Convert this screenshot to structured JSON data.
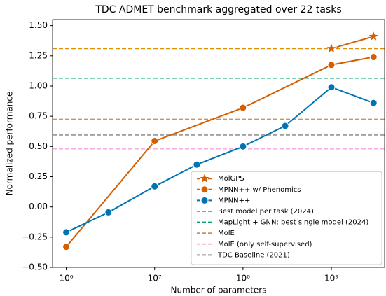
{
  "chart_data": {
    "type": "line",
    "title": "TDC ADMET benchmark aggregated over 22 tasks",
    "x_label": "Number of parameters",
    "y_label": "Normalized performance",
    "x_scale": "log",
    "xlim": [
      700000,
      4000000000
    ],
    "ylim": [
      -0.5,
      1.55
    ],
    "xticks": [
      {
        "value": 1000000,
        "label": "10⁶"
      },
      {
        "value": 10000000,
        "label": "10⁷"
      },
      {
        "value": 100000000,
        "label": "10⁸"
      },
      {
        "value": 1000000000,
        "label": "10⁹"
      }
    ],
    "yticks": [
      {
        "value": -0.5,
        "label": "−0.50"
      },
      {
        "value": -0.25,
        "label": "−0.25"
      },
      {
        "value": 0,
        "label": "0.00"
      },
      {
        "value": 0.25,
        "label": "0.25"
      },
      {
        "value": 0.5,
        "label": "0.50"
      },
      {
        "value": 0.75,
        "label": "0.75"
      },
      {
        "value": 1,
        "label": "1.00"
      },
      {
        "value": 1.25,
        "label": "1.25"
      },
      {
        "value": 1.5,
        "label": "1.50"
      }
    ],
    "legend_position": "lower right",
    "series": [
      {
        "name": "MolGPS",
        "color": "#d55e00",
        "marker": "star",
        "x": [
          1000000000,
          3000000000
        ],
        "values": [
          1.31,
          1.41
        ]
      },
      {
        "name": "MPNN++ w/ Phenomics",
        "color": "#d55e00",
        "marker": "circle",
        "x": [
          1000000,
          10000000,
          100000000,
          1000000000,
          3000000000
        ],
        "values": [
          -0.33,
          0.545,
          0.82,
          1.175,
          1.24
        ]
      },
      {
        "name": "MPNN++",
        "color": "#0173b2",
        "marker": "circle",
        "x": [
          1000000,
          3000000,
          10000000,
          30000000,
          100000000,
          300000000,
          1000000000,
          3000000000
        ],
        "values": [
          -0.21,
          -0.045,
          0.17,
          0.35,
          0.5,
          0.67,
          0.99,
          0.86
        ]
      }
    ],
    "reference_lines": [
      {
        "name": "Best model per task (2024)",
        "color": "#de8f05",
        "value": 1.31
      },
      {
        "name": "MapLight + GNN: best single model (2024)",
        "color": "#029e73",
        "value": 1.065
      },
      {
        "name": "MolE",
        "color": "#ca9161",
        "value": 0.725
      },
      {
        "name": "MolE (only self-supervised)",
        "color": "#fbafe4",
        "value": 0.48
      },
      {
        "name": "TDC Baseline (2021)",
        "color": "#949494",
        "value": 0.595
      }
    ]
  }
}
